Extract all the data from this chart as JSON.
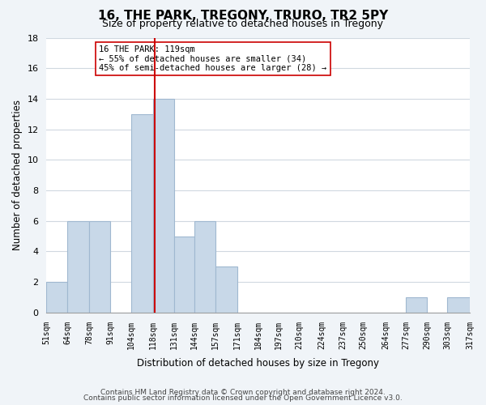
{
  "title": "16, THE PARK, TREGONY, TRURO, TR2 5PY",
  "subtitle": "Size of property relative to detached houses in Tregony",
  "xlabel": "Distribution of detached houses by size in Tregony",
  "ylabel": "Number of detached properties",
  "bin_edges": [
    51,
    64,
    78,
    91,
    104,
    118,
    131,
    144,
    157,
    171,
    184,
    197,
    210,
    224,
    237,
    250,
    264,
    277,
    290,
    303,
    317
  ],
  "bin_labels": [
    "51sqm",
    "64sqm",
    "78sqm",
    "91sqm",
    "104sqm",
    "118sqm",
    "131sqm",
    "144sqm",
    "157sqm",
    "171sqm",
    "184sqm",
    "197sqm",
    "210sqm",
    "224sqm",
    "237sqm",
    "250sqm",
    "264sqm",
    "277sqm",
    "290sqm",
    "303sqm",
    "317sqm"
  ],
  "counts": [
    2,
    6,
    6,
    0,
    13,
    14,
    5,
    6,
    3,
    0,
    0,
    0,
    0,
    0,
    0,
    0,
    0,
    1,
    0,
    1
  ],
  "bar_color": "#c8d8e8",
  "bar_edge_color": "#a0b8d0",
  "property_line_x": 119,
  "property_line_color": "#cc0000",
  "annotation_text": "16 THE PARK: 119sqm\n← 55% of detached houses are smaller (34)\n45% of semi-detached houses are larger (28) →",
  "annotation_box_color": "#ffffff",
  "annotation_box_edge": "#cc0000",
  "ylim": [
    0,
    18
  ],
  "yticks": [
    0,
    2,
    4,
    6,
    8,
    10,
    12,
    14,
    16,
    18
  ],
  "footer_line1": "Contains HM Land Registry data © Crown copyright and database right 2024.",
  "footer_line2": "Contains public sector information licensed under the Open Government Licence v3.0.",
  "background_color": "#f0f4f8",
  "plot_background_color": "#ffffff",
  "grid_color": "#d0d8e0"
}
